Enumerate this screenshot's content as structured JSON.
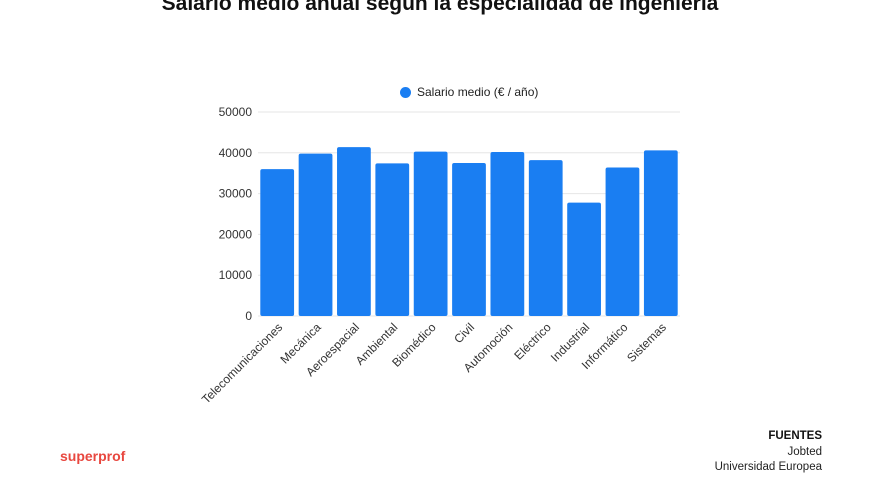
{
  "brand": {
    "name": "superprof",
    "color": "#e8473f"
  },
  "sources": {
    "heading": "FUENTES",
    "items": [
      "Jobted",
      "Universidad Europea"
    ]
  },
  "chart_data": {
    "type": "bar",
    "title": "Salario medio anual según la especialidad de ingeniería",
    "categories": [
      "Telecomunicaciones",
      "Mecánica",
      "Aeroespacial",
      "Ambiental",
      "Biomédico",
      "Civil",
      "Automoción",
      "Eléctrico",
      "Industrial",
      "Informático",
      "Sistemas"
    ],
    "series": [
      {
        "name": "Salario medio (€ / año)",
        "color": "#1a7ef2",
        "values": [
          36000,
          39800,
          41400,
          37400,
          40300,
          37500,
          40200,
          38200,
          27800,
          36400,
          40600
        ]
      }
    ],
    "yticks": [
      0,
      10000,
      20000,
      30000,
      40000,
      50000
    ],
    "ylim": [
      0,
      50000
    ],
    "grid": true,
    "legend_position": "top"
  }
}
